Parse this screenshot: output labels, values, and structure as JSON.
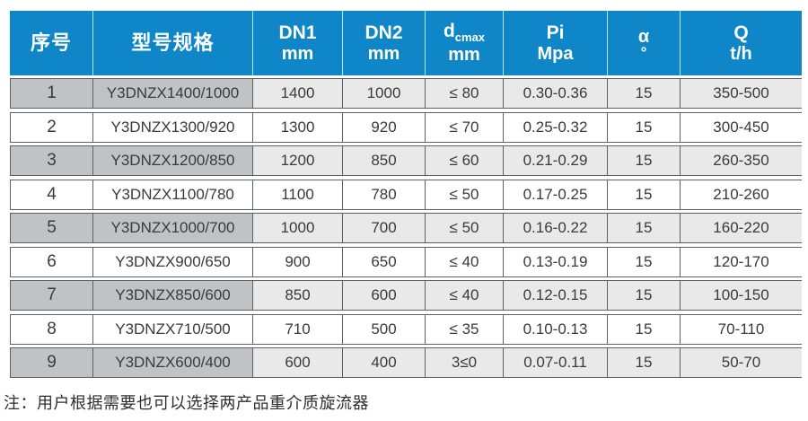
{
  "colors": {
    "header_bg": "#0e86c7",
    "header_text": "#ffffff",
    "row_odd_leading_bg": "#bfc3c6",
    "row_odd_bg": "#e9e9e9",
    "row_even_bg": "#ffffff",
    "border": "#5d6064",
    "cell_text": "#3a3a3a"
  },
  "table": {
    "headers": [
      {
        "line1": "序号"
      },
      {
        "line1": "型号规格"
      },
      {
        "line1": "DN1",
        "line2": "mm"
      },
      {
        "line1": "DN2",
        "line2": "mm"
      },
      {
        "main": "d",
        "sub": "cmax",
        "line2": "mm"
      },
      {
        "line1": "Pi",
        "line2": "Mpa"
      },
      {
        "line1": "α",
        "line2": "°"
      },
      {
        "line1": "Q",
        "line2": "t/h"
      }
    ],
    "rows": [
      [
        "1",
        "Y3DNZX1400/1000",
        "1400",
        "1000",
        "≤ 80",
        "0.30-0.36",
        "15",
        "350-500"
      ],
      [
        "2",
        "Y3DNZX1300/920",
        "1300",
        "920",
        "≤ 70",
        "0.25-0.32",
        "15",
        "300-450"
      ],
      [
        "3",
        "Y3DNZX1200/850",
        "1200",
        "850",
        "≤ 60",
        "0.21-0.29",
        "15",
        "260-350"
      ],
      [
        "4",
        "Y3DNZX1100/780",
        "1100",
        "780",
        "≤ 50",
        "0.17-0.25",
        "15",
        "210-260"
      ],
      [
        "5",
        "Y3DNZX1000/700",
        "1000",
        "700",
        "≤ 50",
        "0.16-0.22",
        "15",
        "160-220"
      ],
      [
        "6",
        "Y3DNZX900/650",
        "900",
        "650",
        "≤ 40",
        "0.13-0.19",
        "15",
        "120-170"
      ],
      [
        "7",
        "Y3DNZX850/600",
        "850",
        "600",
        "≤ 40",
        "0.12-0.15",
        "15",
        "100-150"
      ],
      [
        "8",
        "Y3DNZX710/500",
        "710",
        "500",
        "≤ 35",
        "0.10-0.13",
        "15",
        "70-110"
      ],
      [
        "9",
        "Y3DNZX600/400",
        "600",
        "400",
        "3≤0",
        "0.07-0.11",
        "15",
        "50-70"
      ]
    ]
  },
  "note": "注：用户根据需要也可以选择两产品重介质旋流器"
}
